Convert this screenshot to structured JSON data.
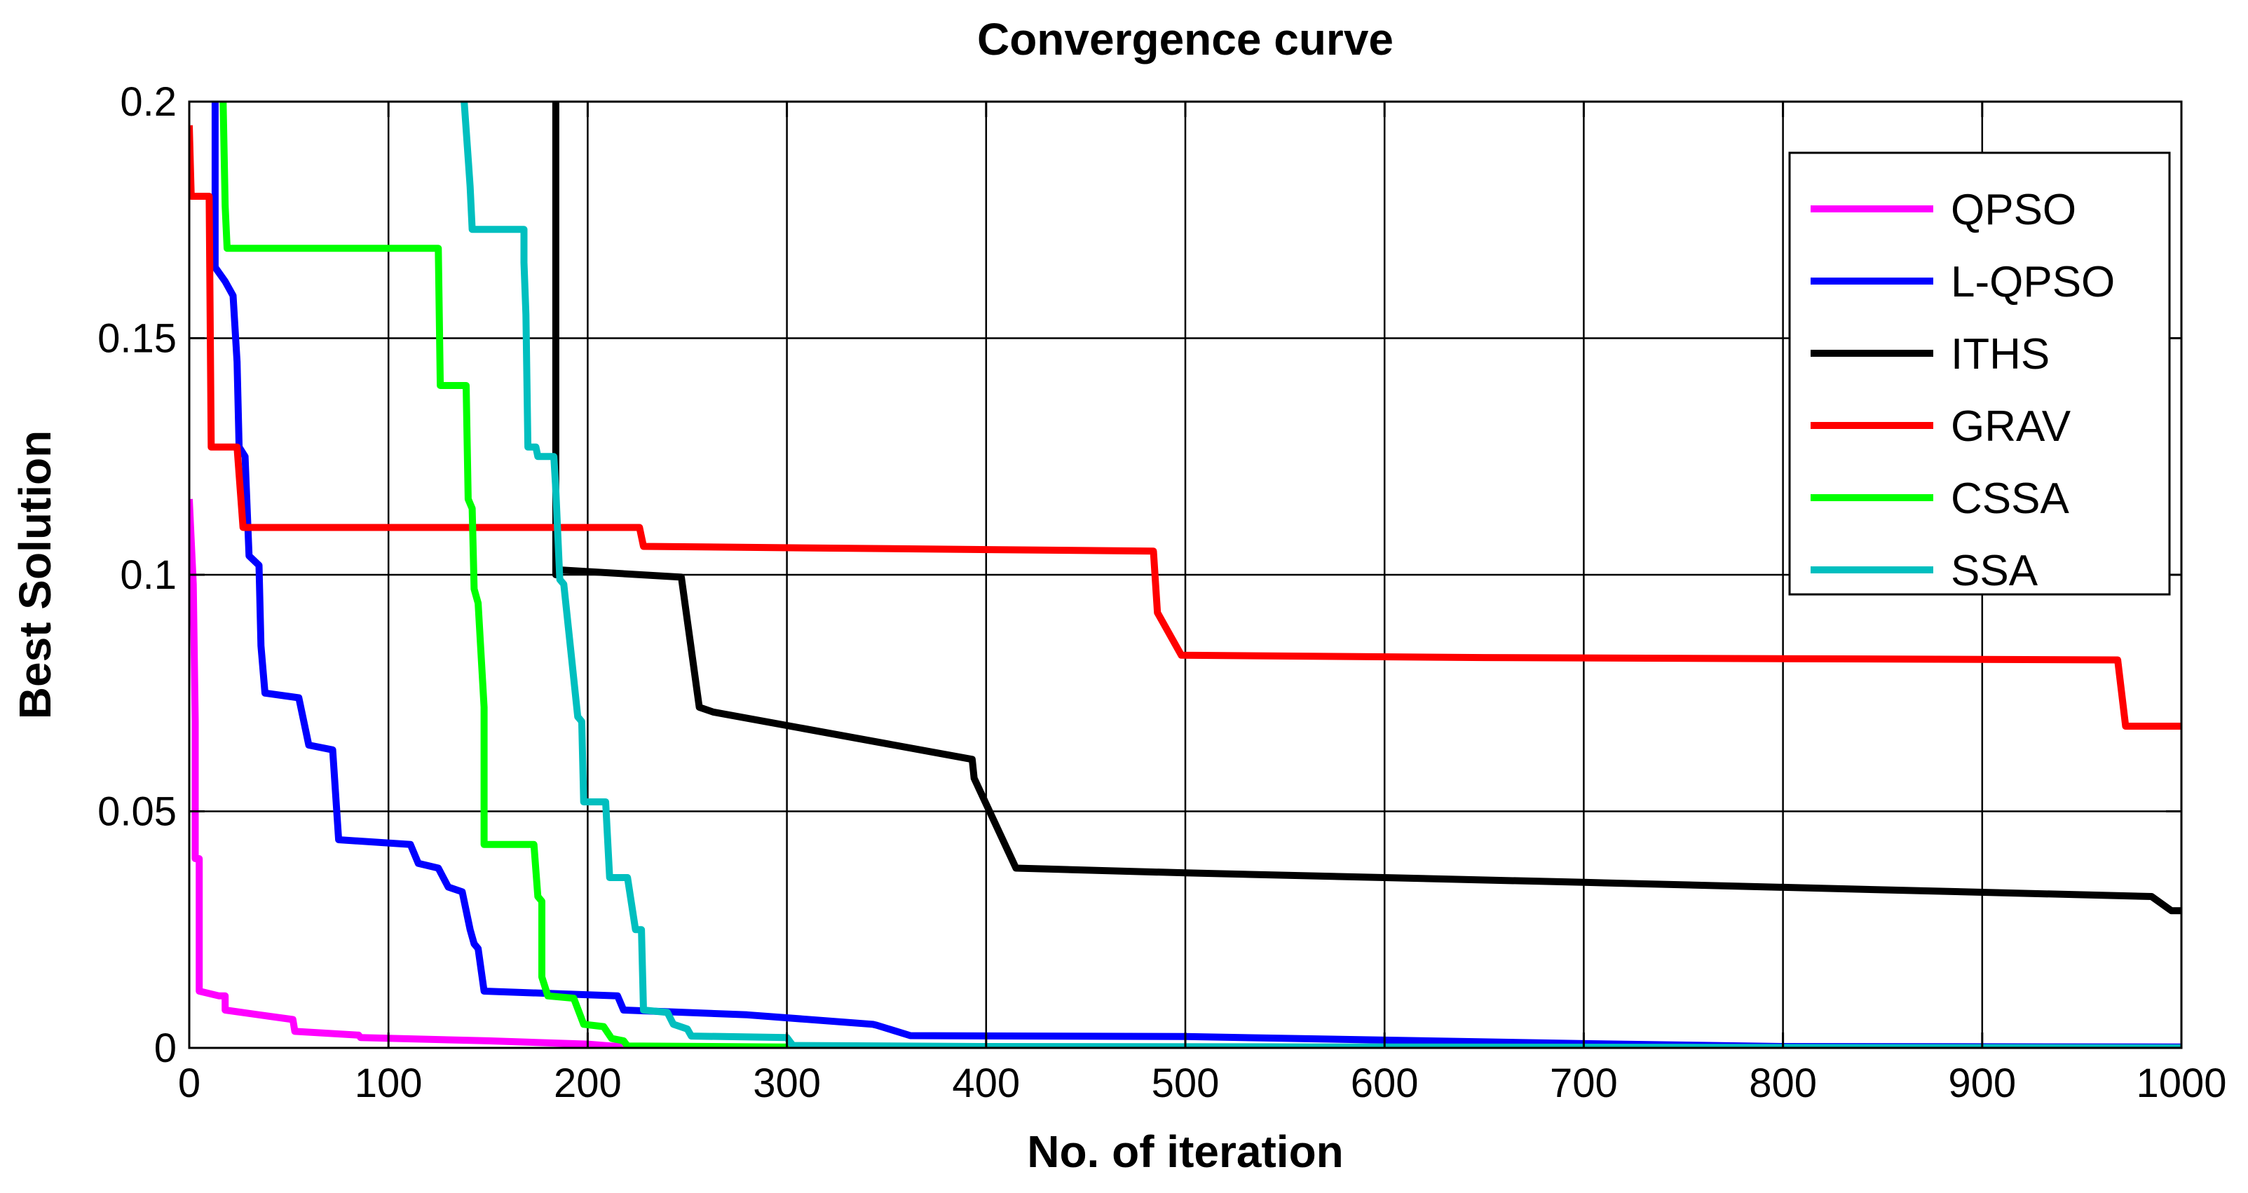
{
  "chart_data": {
    "type": "line",
    "title": "Convergence curve",
    "xlabel": "No. of iteration",
    "ylabel": "Best Solution",
    "xlim": [
      0,
      1000
    ],
    "ylim": [
      0,
      0.2
    ],
    "grid": true,
    "legend_position": "top-right",
    "x_ticks": [
      0,
      100,
      200,
      300,
      400,
      500,
      600,
      700,
      800,
      900,
      1000
    ],
    "x_tick_labels": [
      "0",
      "100",
      "200",
      "300",
      "400",
      "500",
      "600",
      "700",
      "800",
      "900",
      "1000"
    ],
    "y_ticks": [
      0,
      0.05,
      0.1,
      0.15,
      0.2
    ],
    "y_tick_labels": [
      "0",
      "0.05",
      "0.1",
      "0.15",
      "0.2"
    ],
    "series": [
      {
        "name": "QPSO",
        "color": "#ff00ff",
        "points": [
          [
            0,
            0.116
          ],
          [
            2,
            0.098
          ],
          [
            3,
            0.069
          ],
          [
            3,
            0.04
          ],
          [
            5,
            0.04
          ],
          [
            5,
            0.012
          ],
          [
            15,
            0.011
          ],
          [
            18,
            0.011
          ],
          [
            18,
            0.008
          ],
          [
            35,
            0.007
          ],
          [
            52,
            0.006
          ],
          [
            53,
            0.0035
          ],
          [
            85,
            0.0027
          ],
          [
            86,
            0.0022
          ],
          [
            150,
            0.0015
          ],
          [
            200,
            0.0008
          ],
          [
            212,
            0.0004
          ],
          [
            230,
            0.0002
          ],
          [
            300,
            0.0001
          ],
          [
            1000,
            0.0
          ]
        ]
      },
      {
        "name": "L-QPSO",
        "color": "#0000ff",
        "points": [
          [
            13,
            0.2
          ],
          [
            13,
            0.165
          ],
          [
            18,
            0.162
          ],
          [
            22,
            0.159
          ],
          [
            24,
            0.145
          ],
          [
            25,
            0.127
          ],
          [
            28,
            0.125
          ],
          [
            30,
            0.104
          ],
          [
            35,
            0.102
          ],
          [
            36,
            0.085
          ],
          [
            38,
            0.075
          ],
          [
            55,
            0.074
          ],
          [
            60,
            0.064
          ],
          [
            72,
            0.063
          ],
          [
            75,
            0.044
          ],
          [
            111,
            0.043
          ],
          [
            115,
            0.039
          ],
          [
            125,
            0.038
          ],
          [
            130,
            0.034
          ],
          [
            137,
            0.033
          ],
          [
            141,
            0.025
          ],
          [
            143,
            0.022
          ],
          [
            145,
            0.021
          ],
          [
            148,
            0.012
          ],
          [
            215,
            0.011
          ],
          [
            218,
            0.008
          ],
          [
            280,
            0.007
          ],
          [
            343,
            0.005
          ],
          [
            345,
            0.0048
          ],
          [
            362,
            0.0026
          ],
          [
            500,
            0.0024
          ],
          [
            700,
            0.0009
          ],
          [
            800,
            0.0003
          ],
          [
            1000,
            0.0002
          ]
        ]
      },
      {
        "name": "ITHS",
        "color": "#000000",
        "points": [
          [
            184,
            0.2
          ],
          [
            184,
            0.1
          ],
          [
            187,
            0.101
          ],
          [
            247,
            0.0995
          ],
          [
            256,
            0.072
          ],
          [
            263,
            0.071
          ],
          [
            393,
            0.061
          ],
          [
            394,
            0.057
          ],
          [
            415,
            0.038
          ],
          [
            500,
            0.037
          ],
          [
            700,
            0.035
          ],
          [
            985,
            0.032
          ],
          [
            995,
            0.029
          ],
          [
            1000,
            0.029
          ]
        ]
      },
      {
        "name": "GRAV",
        "color": "#ff0000",
        "points": [
          [
            0,
            0.195
          ],
          [
            1,
            0.18
          ],
          [
            10,
            0.18
          ],
          [
            11,
            0.127
          ],
          [
            24,
            0.127
          ],
          [
            27,
            0.11
          ],
          [
            226,
            0.11
          ],
          [
            228,
            0.106
          ],
          [
            484,
            0.105
          ],
          [
            486,
            0.092
          ],
          [
            498,
            0.083
          ],
          [
            650,
            0.0825
          ],
          [
            968,
            0.082
          ],
          [
            972,
            0.068
          ],
          [
            1000,
            0.068
          ]
        ]
      },
      {
        "name": "CSSA",
        "color": "#00ff00",
        "points": [
          [
            17,
            0.2
          ],
          [
            18,
            0.178
          ],
          [
            19,
            0.169
          ],
          [
            125,
            0.169
          ],
          [
            126,
            0.14
          ],
          [
            139,
            0.14
          ],
          [
            140,
            0.116
          ],
          [
            142,
            0.114
          ],
          [
            143,
            0.097
          ],
          [
            145,
            0.094
          ],
          [
            148,
            0.072
          ],
          [
            148,
            0.043
          ],
          [
            173,
            0.043
          ],
          [
            175,
            0.032
          ],
          [
            177,
            0.031
          ],
          [
            177,
            0.015
          ],
          [
            180,
            0.011
          ],
          [
            193,
            0.0105
          ],
          [
            198,
            0.005
          ],
          [
            208,
            0.0045
          ],
          [
            212,
            0.002
          ],
          [
            218,
            0.0015
          ],
          [
            220,
            0.0004
          ],
          [
            300,
            0.0002
          ],
          [
            1000,
            0.0
          ]
        ]
      },
      {
        "name": "SSA",
        "color": "#00bfbf",
        "points": [
          [
            138,
            0.2
          ],
          [
            140,
            0.188
          ],
          [
            141,
            0.182
          ],
          [
            142,
            0.173
          ],
          [
            168,
            0.173
          ],
          [
            168,
            0.166
          ],
          [
            169,
            0.155
          ],
          [
            170,
            0.127
          ],
          [
            174,
            0.127
          ],
          [
            175,
            0.125
          ],
          [
            183,
            0.125
          ],
          [
            184,
            0.118
          ],
          [
            186,
            0.099
          ],
          [
            188,
            0.098
          ],
          [
            192,
            0.082
          ],
          [
            195,
            0.07
          ],
          [
            197,
            0.069
          ],
          [
            198,
            0.052
          ],
          [
            209,
            0.052
          ],
          [
            211,
            0.036
          ],
          [
            220,
            0.036
          ],
          [
            224,
            0.025
          ],
          [
            227,
            0.025
          ],
          [
            228,
            0.008
          ],
          [
            240,
            0.0075
          ],
          [
            243,
            0.005
          ],
          [
            250,
            0.004
          ],
          [
            252,
            0.0025
          ],
          [
            300,
            0.0022
          ],
          [
            303,
            0.0005
          ],
          [
            400,
            0.0003
          ],
          [
            1000,
            0.0
          ]
        ]
      }
    ]
  }
}
